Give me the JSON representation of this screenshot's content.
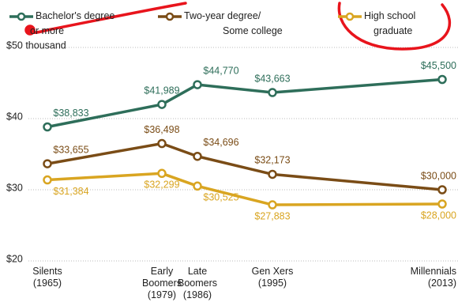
{
  "chart_data": {
    "type": "line",
    "categories": [
      [
        "Silents",
        "(1965)"
      ],
      [
        "Early",
        "Boomers",
        "(1979)"
      ],
      [
        "Late",
        "Boomers",
        "(1986)"
      ],
      [
        "Gen Xers",
        "(1995)"
      ],
      [
        "Millennials",
        "(2013)"
      ]
    ],
    "series": [
      {
        "name": [
          "Bachelor's degree",
          "or more"
        ],
        "color": "#2e6e5a",
        "values": [
          38.833,
          41.989,
          44.77,
          43.663,
          45.5
        ],
        "value_labels": [
          "$38,833",
          "$41,989",
          "$44,770",
          "$43,663",
          "$45,500"
        ]
      },
      {
        "name": [
          "Two-year degree/",
          "Some college"
        ],
        "color": "#7a4c16",
        "values": [
          33.655,
          36.498,
          34.696,
          32.173,
          30.0
        ],
        "value_labels": [
          "$33,655",
          "$36,498",
          "$34,696",
          "$32,173",
          "$30,000"
        ]
      },
      {
        "name": [
          "High school",
          "graduate"
        ],
        "color": "#d9a521",
        "values": [
          31.384,
          32.299,
          30.525,
          27.883,
          28.0
        ],
        "value_labels": [
          "$31,384",
          "$32,299",
          "$30,525",
          "$27,883",
          "$28,000"
        ]
      }
    ],
    "ylim": [
      20,
      50
    ],
    "yticks": [
      {
        "value": 20,
        "label": "$20"
      },
      {
        "value": 30,
        "label": "$30"
      },
      {
        "value": 40,
        "label": "$40"
      },
      {
        "value": 50,
        "label": "$50 thousand"
      }
    ],
    "grid": true
  }
}
